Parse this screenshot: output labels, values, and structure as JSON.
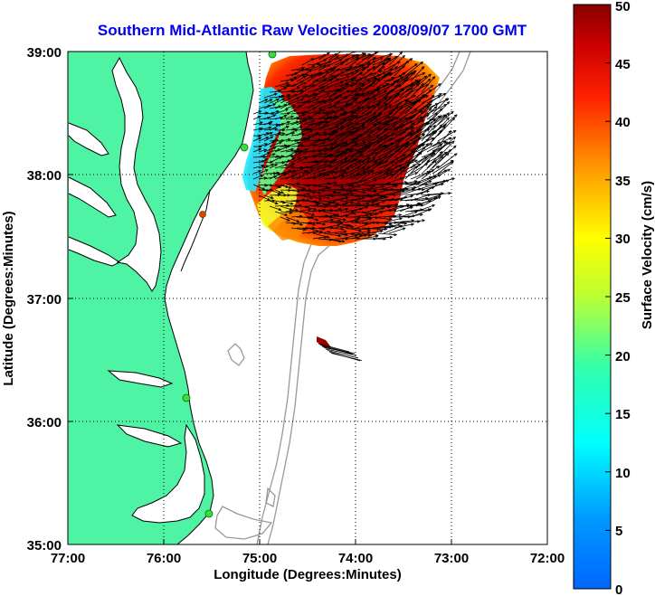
{
  "title": "Southern Mid-Atlantic Raw Velocities 2008/09/07 1700 GMT",
  "title_color": "#0000ee",
  "x_axis": {
    "label": "Longitude (Degrees:Minutes)",
    "ticks": [
      "77:00",
      "76:00",
      "75:00",
      "74:00",
      "73:00",
      "72:00"
    ]
  },
  "y_axis": {
    "label": "Latitude (Degrees:Minutes)",
    "ticks": [
      "35:00",
      "36:00",
      "37:00",
      "38:00",
      "39:00"
    ]
  },
  "colorbar": {
    "label": "Surface Velocity (cm/s)",
    "ticks": [
      "0",
      "5",
      "10",
      "15",
      "20",
      "25",
      "30",
      "35",
      "40",
      "45",
      "50"
    ],
    "colormap": "jet"
  },
  "colors": {
    "land": "#4ef3a4",
    "coastline": "#000000",
    "bathymetry": "#999999",
    "station": "#3edb3e"
  }
}
